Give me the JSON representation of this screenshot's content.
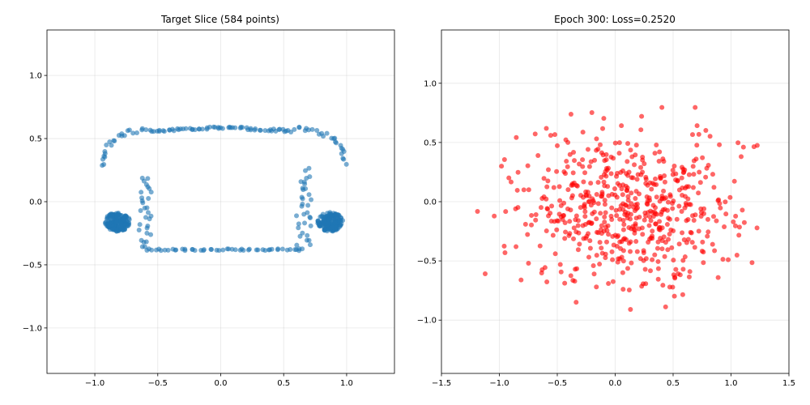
{
  "chart_data": [
    {
      "type": "scatter",
      "title": "Target Slice (584 points)",
      "xlabel": "",
      "ylabel": "",
      "xlim": [
        -1.38,
        1.38
      ],
      "ylim": [
        -1.36,
        1.36
      ],
      "xticks": [
        -1.0,
        -0.5,
        0.0,
        0.5,
        1.0
      ],
      "yticks": [
        -1.0,
        -0.5,
        0.0,
        0.5,
        1.0
      ],
      "xtick_labels": [
        "−1.0",
        "−0.5",
        "0.0",
        "0.5",
        "1.0"
      ],
      "ytick_labels": [
        "−1.0",
        "−0.5",
        "0.0",
        "0.5",
        "1.0"
      ],
      "grid": true,
      "color": "#1f77b4",
      "point_count": 584,
      "shape": {
        "top_bar": {
          "x_range": [
            -0.55,
            0.55
          ],
          "y": 0.59
        },
        "top_left_arc": {
          "from": [
            -0.95,
            0.28
          ],
          "to": [
            -0.55,
            0.57
          ]
        },
        "top_right_arc": {
          "from": [
            0.55,
            0.58
          ],
          "to": [
            1.0,
            0.3
          ]
        },
        "bottom_bar": {
          "x_range": [
            -0.6,
            0.65
          ],
          "y": -0.38
        },
        "left_inner_stem": {
          "x_range": [
            -0.65,
            -0.55
          ],
          "y_range": [
            -0.37,
            0.2
          ]
        },
        "right_inner_stem": {
          "x_range": [
            0.6,
            0.72
          ],
          "y_range": [
            -0.37,
            0.25
          ]
        },
        "left_cluster": {
          "center": [
            -0.82,
            -0.16
          ],
          "radius": 0.1
        },
        "right_cluster": {
          "center": [
            0.87,
            -0.16
          ],
          "radius": 0.1
        }
      }
    },
    {
      "type": "scatter",
      "title": "Epoch 300: Loss=0.2520",
      "xlabel": "",
      "ylabel": "",
      "xlim": [
        -1.5,
        1.5
      ],
      "ylim": [
        -1.45,
        1.45
      ],
      "xticks": [
        -1.5,
        -1.0,
        -0.5,
        0.0,
        0.5,
        1.0,
        1.5
      ],
      "yticks": [
        -1.0,
        -0.5,
        0.0,
        0.5,
        1.0
      ],
      "xtick_labels": [
        "−1.5",
        "−1.0",
        "−0.5",
        "0.0",
        "0.5",
        "1.0",
        "1.5"
      ],
      "ytick_labels": [
        "−1.0",
        "−0.5",
        "0.0",
        "0.5",
        "1.0"
      ],
      "grid": true,
      "color": "#ff0000",
      "point_count": 584,
      "distribution": {
        "center": [
          0.1,
          -0.08
        ],
        "spread": [
          0.5,
          0.33
        ],
        "x_extent": [
          -1.28,
          1.38
        ],
        "y_extent": [
          -1.05,
          0.8
        ]
      }
    }
  ]
}
